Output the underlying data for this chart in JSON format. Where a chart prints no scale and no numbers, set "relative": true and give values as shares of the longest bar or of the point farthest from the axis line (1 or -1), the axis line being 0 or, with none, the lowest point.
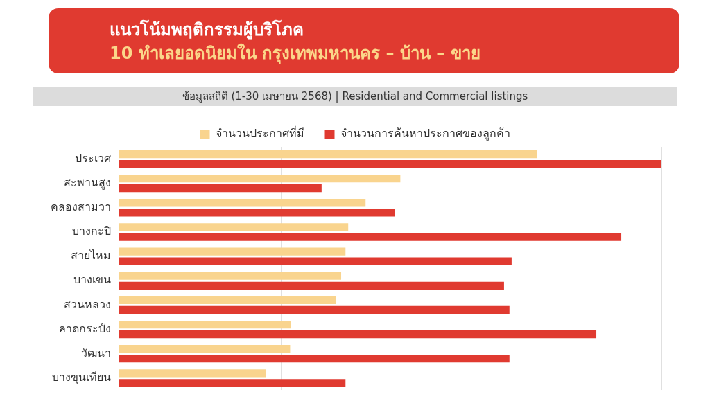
{
  "chart_data": {
    "type": "bar",
    "orientation": "horizontal",
    "relative": true,
    "title": "แนวโน้มพฤติกรรมผู้บริโภค",
    "subtitle": "10 ทำเลยอดนิยมใน กรุงเทพมหานคร – บ้าน – ขาย",
    "annotations": [
      "ข้อมูลสถิติ (1-30 เมษายน 2568) | Residential and Commercial listings"
    ],
    "categories": [
      "ประเวศ",
      "สะพานสูง",
      "คลองสามวา",
      "บางกะปิ",
      "สายไหม",
      "บางเขน",
      "สวนหลวง",
      "ลาดกระบัง",
      "วัฒนา",
      "บางขุนเทียน"
    ],
    "series": [
      {
        "name": "จำนวนประกาศที่มี",
        "color": "#f9d48e",
        "values": [
          0.771,
          0.519,
          0.455,
          0.423,
          0.418,
          0.41,
          0.401,
          0.317,
          0.316,
          0.272
        ]
      },
      {
        "name": "จำนวนการค้นหาประกาศของลูกค้า",
        "color": "#e03a30",
        "values": [
          1,
          0.374,
          0.509,
          0.926,
          0.724,
          0.71,
          0.72,
          0.88,
          0.72,
          0.418
        ]
      }
    ],
    "grid": "x",
    "legend": "top"
  }
}
